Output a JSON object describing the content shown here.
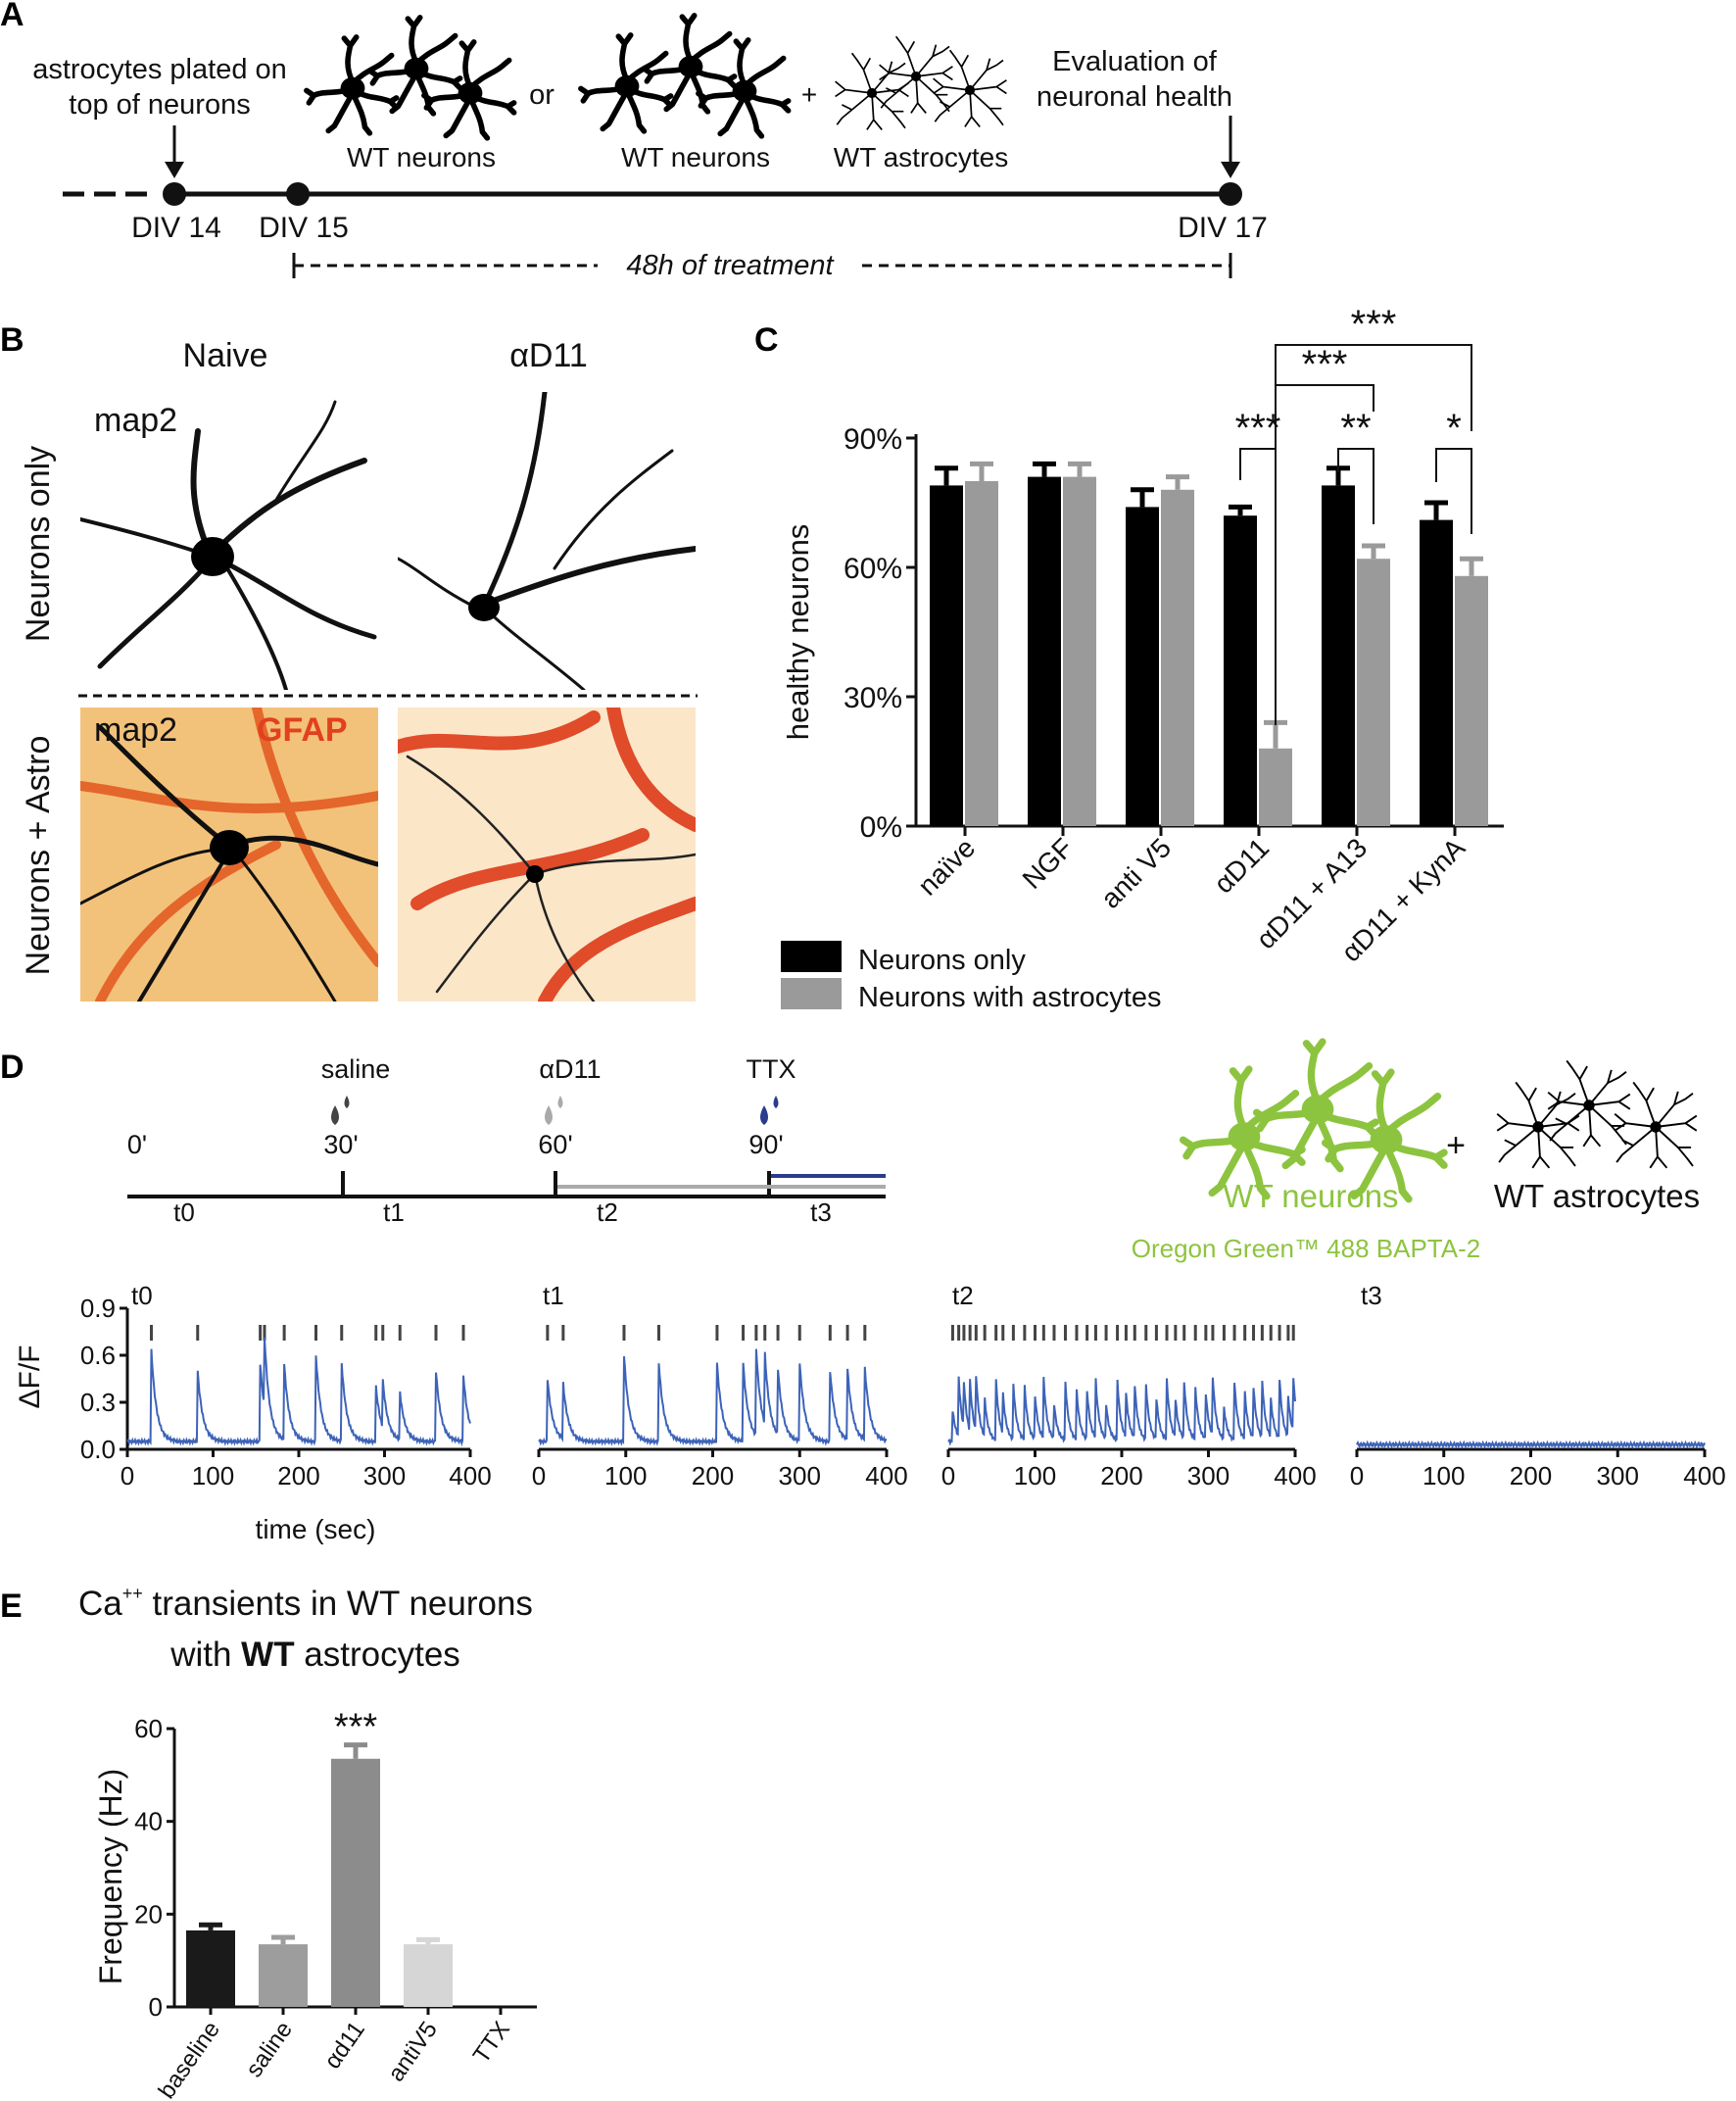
{
  "panel_labels": [
    "A",
    "B",
    "C",
    "D",
    "E"
  ],
  "panelA": {
    "plated_line1": "astrocytes plated on",
    "plated_line2": "top of neurons",
    "or": "or",
    "plus": "+",
    "wt_neurons_1": "WT neurons",
    "wt_neurons_2": "WT neurons",
    "wt_astrocytes": "WT astrocytes",
    "eval_line1": "Evaluation of",
    "eval_line2": "neuronal health",
    "div14": "DIV 14",
    "div15": "DIV 15",
    "div17": "DIV 17",
    "treatment": "48h of treatment"
  },
  "panelB": {
    "col_naive": "Naive",
    "col_ad11": "αD11",
    "row_neurons_only": "Neurons only",
    "row_neurons_astro": "Neurons + Astro",
    "map2_top": "map2",
    "map2_bottom": "map2",
    "gfap": "GFAP"
  },
  "panelC": {
    "chart_data": {
      "type": "bar",
      "categories": [
        "naïve",
        "NGF",
        "anti V5",
        "αD11",
        "αD11 + A13",
        "αD11 + KynA"
      ],
      "series": [
        {
          "name": "Neurons only",
          "values": [
            79,
            81,
            74,
            72,
            79,
            71
          ],
          "errors": [
            4,
            3,
            4,
            2,
            4,
            4
          ],
          "color": "#000000"
        },
        {
          "name": "Neurons with astrocytes",
          "values": [
            80,
            81,
            78,
            18,
            62,
            58
          ],
          "errors": [
            4,
            3,
            3,
            6,
            3,
            4
          ],
          "color": "#9a9a9a"
        }
      ],
      "ylabel": "healthy neurons",
      "yticks": [
        "0%",
        "30%",
        "60%",
        "90%"
      ],
      "ylim": [
        0,
        90
      ],
      "significance": [
        "***",
        "***",
        "***",
        "**",
        "*"
      ],
      "legend_placement": "bottom-left"
    }
  },
  "panelD": {
    "timeline": {
      "saline": "saline",
      "ad11": "αD11",
      "ttx": "TTX",
      "t_0": "0'",
      "t_30": "30'",
      "t_60": "60'",
      "t_90": "90'",
      "seg_t0": "t0",
      "seg_t1": "t1",
      "seg_t2": "t2",
      "seg_t3": "t3"
    },
    "wt_neurons": "WT neurons",
    "plus": "+",
    "wt_astrocytes": "WT astrocytes",
    "dye": "Oregon Green™ 488 BAPTA-2",
    "chart_data": {
      "type": "line",
      "panels": [
        "t0",
        "t1",
        "t2",
        "t3"
      ],
      "ylabel": "ΔF/F",
      "xlabel": "time (sec)",
      "yticks": [
        "0.0",
        "0.3",
        "0.6",
        "0.9"
      ],
      "xticks": [
        "0",
        "100",
        "200",
        "300",
        "400"
      ],
      "xlim": [
        0,
        400
      ],
      "ylim": [
        0,
        0.9
      ],
      "peaks": [
        [
          28,
          82,
          155,
          160,
          183,
          220,
          250,
          290,
          298,
          318,
          360,
          392
        ],
        [
          10,
          28,
          98,
          138,
          205,
          235,
          250,
          260,
          275,
          300,
          335,
          355,
          375
        ],
        [
          5,
          12,
          18,
          25,
          32,
          42,
          55,
          63,
          75,
          88,
          100,
          110,
          122,
          135,
          148,
          160,
          170,
          182,
          195,
          205,
          215,
          228,
          240,
          252,
          262,
          272,
          285,
          297,
          305,
          318,
          330,
          342,
          352,
          362,
          372,
          382,
          392,
          398
        ],
        []
      ]
    }
  },
  "panelE": {
    "title_ca": "Ca",
    "title_sup": "++",
    "title_rest": " transients in WT neurons",
    "title_line2_pre": "with ",
    "title_line2_bold": "WT",
    "title_line2_post": " astrocytes",
    "chart_data": {
      "type": "bar",
      "categories": [
        "baseline",
        "saline",
        "αd11",
        "antiV5",
        "TTX"
      ],
      "values": [
        16.5,
        13.5,
        53.5,
        13.5,
        0
      ],
      "errors": [
        1.2,
        1.5,
        3,
        1,
        0
      ],
      "colors": [
        "#1a1a1a",
        "#9d9d9d",
        "#8c8c8c",
        "#d6d6d6",
        "#ffffff"
      ],
      "ylabel": "Frequency (Hz)",
      "yticks": [
        "0",
        "20",
        "40",
        "60"
      ],
      "ylim": [
        0,
        60
      ],
      "significance": "***"
    }
  }
}
